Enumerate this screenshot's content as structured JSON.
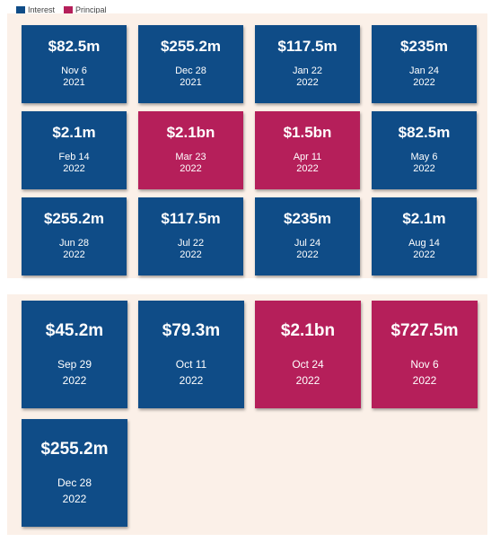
{
  "legend": [
    {
      "label": "Interest",
      "color": "#0f4c87"
    },
    {
      "label": "Principal",
      "color": "#b51f5a"
    }
  ],
  "chart_data": [
    {
      "type": "table",
      "payments": [
        {
          "amount": "$82.5m",
          "month_day": "Nov 6",
          "year": "2021",
          "kind": "Interest"
        },
        {
          "amount": "$255.2m",
          "month_day": "Dec 28",
          "year": "2021",
          "kind": "Interest"
        },
        {
          "amount": "$117.5m",
          "month_day": "Jan 22",
          "year": "2022",
          "kind": "Interest"
        },
        {
          "amount": "$235m",
          "month_day": "Jan 24",
          "year": "2022",
          "kind": "Interest"
        },
        {
          "amount": "$2.1m",
          "month_day": "Feb 14",
          "year": "2022",
          "kind": "Interest"
        },
        {
          "amount": "$2.1bn",
          "month_day": "Mar 23",
          "year": "2022",
          "kind": "Principal"
        },
        {
          "amount": "$1.5bn",
          "month_day": "Apr 11",
          "year": "2022",
          "kind": "Principal"
        },
        {
          "amount": "$82.5m",
          "month_day": "May 6",
          "year": "2022",
          "kind": "Interest"
        },
        {
          "amount": "$255.2m",
          "month_day": "Jun 28",
          "year": "2022",
          "kind": "Interest"
        },
        {
          "amount": "$117.5m",
          "month_day": "Jul 22",
          "year": "2022",
          "kind": "Interest"
        },
        {
          "amount": "$235m",
          "month_day": "Jul 24",
          "year": "2022",
          "kind": "Interest"
        },
        {
          "amount": "$2.1m",
          "month_day": "Aug 14",
          "year": "2022",
          "kind": "Interest"
        }
      ]
    },
    {
      "type": "table",
      "payments": [
        {
          "amount": "$45.2m",
          "month_day": "Sep 29",
          "year": "2022",
          "kind": "Interest"
        },
        {
          "amount": "$79.3m",
          "month_day": "Oct 11",
          "year": "2022",
          "kind": "Interest"
        },
        {
          "amount": "$2.1bn",
          "month_day": "Oct 24",
          "year": "2022",
          "kind": "Principal"
        },
        {
          "amount": "$727.5m",
          "month_day": "Nov 6",
          "year": "2022",
          "kind": "Principal"
        },
        {
          "amount": "$255.2m",
          "month_day": "Dec 28",
          "year": "2022",
          "kind": "Interest"
        }
      ]
    }
  ]
}
